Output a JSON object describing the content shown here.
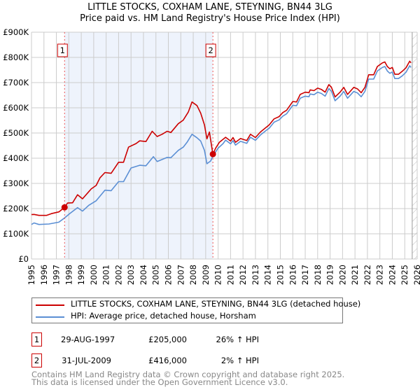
{
  "chart_data": {
    "type": "line",
    "title": "LITTLE STOCKS, COXHAM LANE, STEYNING, BN44 3LG",
    "subtitle": "Price paid vs. HM Land Registry's House Price Index (HPI)",
    "xlim": [
      1995,
      2026
    ],
    "ylim": [
      0,
      900000
    ],
    "grid": true,
    "x_ticks": [
      "1995",
      "1996",
      "1997",
      "1998",
      "1999",
      "2000",
      "2001",
      "2002",
      "2003",
      "2004",
      "2005",
      "2006",
      "2007",
      "2008",
      "2009",
      "2010",
      "2011",
      "2012",
      "2013",
      "2014",
      "2015",
      "2016",
      "2017",
      "2018",
      "2019",
      "2020",
      "2021",
      "2022",
      "2023",
      "2024",
      "2025",
      "2026"
    ],
    "y_ticks": [
      {
        "value": 0,
        "label": "£0"
      },
      {
        "value": 100000,
        "label": "£100K"
      },
      {
        "value": 200000,
        "label": "£200K"
      },
      {
        "value": 300000,
        "label": "£300K"
      },
      {
        "value": 400000,
        "label": "£400K"
      },
      {
        "value": 500000,
        "label": "£500K"
      },
      {
        "value": 600000,
        "label": "£600K"
      },
      {
        "value": 700000,
        "label": "£700K"
      },
      {
        "value": 800000,
        "label": "£800K"
      },
      {
        "value": 900000,
        "label": "£900K"
      }
    ],
    "shaded_range": [
      1997.66,
      2009.58
    ],
    "forecast_hatch_from": 2025.6,
    "series": [
      {
        "name": "LITTLE STOCKS, COXHAM LANE, STEYNING, BN44 3LG (detached house)",
        "color": "#cc0000",
        "x": [
          1995.0,
          1995.2,
          1995.6,
          1996.2,
          1996.6,
          1997.2,
          1997.66,
          1997.9,
          1998.3,
          1998.7,
          1999.1,
          1999.8,
          2000.2,
          2000.5,
          2000.9,
          2001.4,
          2002.0,
          2002.4,
          2002.8,
          2003.4,
          2003.7,
          2004.2,
          2004.7,
          2005.1,
          2005.5,
          2005.9,
          2006.2,
          2006.8,
          2007.2,
          2007.6,
          2007.9,
          2008.3,
          2008.6,
          2008.9,
          2009.1,
          2009.3,
          2009.58,
          2009.8,
          2010.1,
          2010.6,
          2011.0,
          2011.2,
          2011.4,
          2011.8,
          2012.3,
          2012.6,
          2013.0,
          2013.4,
          2013.8,
          2014.1,
          2014.5,
          2014.9,
          2015.2,
          2015.5,
          2016.0,
          2016.3,
          2016.6,
          2017.0,
          2017.3,
          2017.4,
          2017.7,
          2018.0,
          2018.3,
          2018.6,
          2018.9,
          2019.1,
          2019.4,
          2019.8,
          2020.1,
          2020.4,
          2020.9,
          2021.2,
          2021.5,
          2021.8,
          2022.1,
          2022.5,
          2022.8,
          2023.2,
          2023.4,
          2023.6,
          2023.8,
          2024.0,
          2024.2,
          2024.5,
          2024.8,
          2025.1,
          2025.4,
          2025.5
        ],
        "values": [
          176000,
          177000,
          173000,
          173000,
          180000,
          187000,
          205000,
          222000,
          223000,
          255000,
          239000,
          278000,
          292000,
          322000,
          343000,
          340000,
          384000,
          384000,
          444000,
          458000,
          469000,
          466000,
          507000,
          486000,
          495000,
          507000,
          502000,
          537000,
          551000,
          583000,
          623000,
          609000,
          579000,
          532000,
          477000,
          504000,
          416000,
          440000,
          463000,
          483000,
          468000,
          482000,
          463000,
          478000,
          470000,
          495000,
          482000,
          504000,
          520000,
          532000,
          556000,
          565000,
          581000,
          590000,
          625000,
          623000,
          653000,
          662000,
          660000,
          671000,
          668000,
          678000,
          673000,
          662000,
          692000,
          682000,
          643000,
          662000,
          681000,
          653000,
          681000,
          675000,
          660000,
          681000,
          731000,
          731000,
          764000,
          778000,
          782000,
          764000,
          755000,
          760000,
          733000,
          733000,
          745000,
          759000,
          785000,
          778000
        ]
      },
      {
        "name": "HPI: Average price, detached house, Horsham",
        "color": "#5b8fd4",
        "x": [
          1995.0,
          1995.2,
          1995.6,
          1996.4,
          1997.2,
          1997.66,
          1998.1,
          1998.7,
          1999.1,
          1999.6,
          2000.2,
          2000.9,
          2001.4,
          2002.0,
          2002.4,
          2003.0,
          2003.7,
          2004.2,
          2004.8,
          2005.1,
          2005.9,
          2006.2,
          2006.8,
          2007.2,
          2007.5,
          2007.9,
          2008.3,
          2008.6,
          2008.9,
          2009.1,
          2009.4,
          2009.58,
          2010.0,
          2010.4,
          2010.6,
          2011.0,
          2011.2,
          2011.4,
          2011.8,
          2012.3,
          2012.6,
          2013.0,
          2013.4,
          2013.8,
          2014.1,
          2014.5,
          2014.9,
          2015.2,
          2015.5,
          2016.0,
          2016.3,
          2016.6,
          2017.0,
          2017.3,
          2017.4,
          2017.7,
          2018.0,
          2018.3,
          2018.6,
          2018.9,
          2019.1,
          2019.4,
          2019.8,
          2020.1,
          2020.4,
          2020.9,
          2021.2,
          2021.5,
          2021.8,
          2022.1,
          2022.5,
          2022.8,
          2023.2,
          2023.4,
          2023.6,
          2023.8,
          2024.0,
          2024.2,
          2024.5,
          2024.8,
          2025.1,
          2025.4,
          2025.5
        ],
        "values": [
          137000,
          143000,
          137000,
          139000,
          146000,
          163000,
          181000,
          204000,
          190000,
          213000,
          231000,
          273000,
          271000,
          307000,
          307000,
          361000,
          372000,
          370000,
          406000,
          387000,
          403000,
          402000,
          431000,
          444000,
          463000,
          495000,
          481000,
          468000,
          431000,
          378000,
          389000,
          408000,
          440000,
          458000,
          472000,
          457000,
          470000,
          452000,
          467000,
          459000,
          483000,
          471000,
          492000,
          508000,
          519000,
          543000,
          552000,
          567000,
          576000,
          610000,
          608000,
          638000,
          646000,
          644000,
          655000,
          652000,
          662000,
          657000,
          646000,
          676000,
          666000,
          628000,
          646000,
          665000,
          638000,
          665000,
          659000,
          644000,
          665000,
          714000,
          714000,
          746000,
          760000,
          764000,
          746000,
          737000,
          742000,
          716000,
          716000,
          727000,
          741000,
          767000,
          760000
        ]
      }
    ],
    "sales": [
      {
        "id": "1",
        "x": 1997.66,
        "value": 205000,
        "date": "29-AUG-1997",
        "price": "£205,000",
        "hpi": "26% ↑ HPI"
      },
      {
        "id": "2",
        "x": 2009.58,
        "value": 416000,
        "date": "31-JUL-2009",
        "price": "£416,000",
        "hpi": "2% ↑ HPI"
      }
    ]
  },
  "legend": {
    "property": "LITTLE STOCKS, COXHAM LANE, STEYNING, BN44 3LG (detached house)",
    "hpi": "HPI: Average price, detached house, Horsham"
  },
  "footer": {
    "line1": "Contains HM Land Registry data © Crown copyright and database right 2025.",
    "line2": "This data is licensed under the Open Government Licence v3.0."
  }
}
